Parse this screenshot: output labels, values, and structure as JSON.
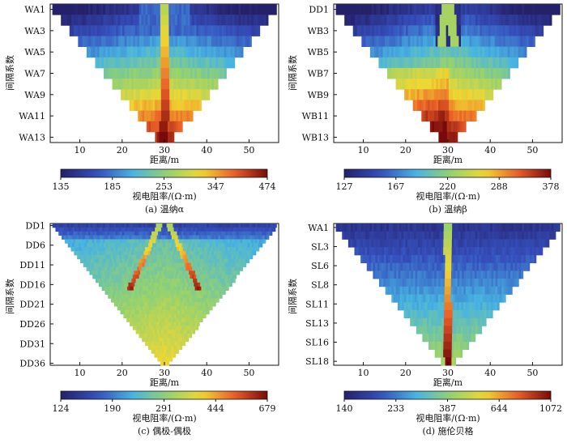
{
  "chart_data": [
    {
      "type": "heatmap",
      "caption": "(a) 温纳α",
      "ylabel": "间隔系数",
      "xlabel": "距离/m",
      "x_ticks": [
        10,
        20,
        30,
        40,
        50
      ],
      "y_tick_labels": [
        "WA1",
        "WA3",
        "WA5",
        "WA7",
        "WA9",
        "WA11",
        "WA13"
      ],
      "y_levels": 13,
      "xlim": [
        3,
        57
      ],
      "colorbar": {
        "label": "视电阻率/(Ω·m)",
        "ticks": [
          "135",
          "185",
          "253",
          "347",
          "474"
        ],
        "min": 135,
        "max": 474
      },
      "pattern": "wenner-alpha"
    },
    {
      "type": "heatmap",
      "caption": "(b) 温纳β",
      "ylabel": "间隔系数",
      "xlabel": "距离/m",
      "x_ticks": [
        10,
        20,
        30,
        40,
        50
      ],
      "y_tick_labels": [
        "DD1",
        "WB3",
        "WB5",
        "WB7",
        "WB9",
        "WB11",
        "WB13"
      ],
      "y_levels": 13,
      "xlim": [
        3,
        57
      ],
      "colorbar": {
        "label": "视电阻率/(Ω·m)",
        "ticks": [
          "127",
          "167",
          "220",
          "288",
          "378"
        ],
        "min": 127,
        "max": 378
      },
      "pattern": "wenner-beta"
    },
    {
      "type": "heatmap",
      "caption": "(c) 偶极-偶极",
      "ylabel": "间隔系数",
      "xlabel": "距离/m",
      "x_ticks": [
        10,
        20,
        30,
        40,
        50
      ],
      "y_tick_labels": [
        "DD1",
        "DD6",
        "DD11",
        "DD16",
        "DD21",
        "DD26",
        "DD31",
        "DD36"
      ],
      "y_levels": 36,
      "xlim": [
        3,
        57
      ],
      "colorbar": {
        "label": "视电阻率/(Ω·m)",
        "ticks": [
          "124",
          "190",
          "291",
          "444",
          "679"
        ],
        "min": 124,
        "max": 679
      },
      "pattern": "dipole-dipole"
    },
    {
      "type": "heatmap",
      "caption": "(d) 施伦贝格",
      "ylabel": "间隔系数",
      "xlabel": "距离/m",
      "x_ticks": [
        10,
        20,
        30,
        40,
        50
      ],
      "y_tick_labels": [
        "WA1",
        "SL3",
        "SL6",
        "SL8",
        "SL11",
        "SL13",
        "SL16",
        "SL18"
      ],
      "y_levels": 18,
      "xlim": [
        3,
        57
      ],
      "colorbar": {
        "label": "视电阻率/(Ω·m)",
        "ticks": [
          "140",
          "233",
          "387",
          "644",
          "1072"
        ],
        "min": 140,
        "max": 1072
      },
      "pattern": "schlumberger"
    }
  ]
}
